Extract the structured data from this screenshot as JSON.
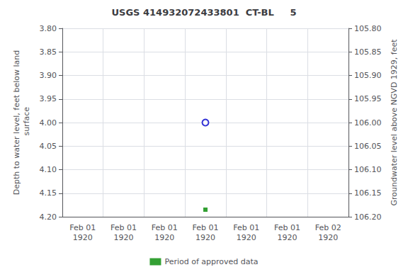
{
  "chart_data": {
    "type": "scatter",
    "title": "USGS 414932072433801  CT-BL     5",
    "categories": [
      "Feb 01\n1920",
      "Feb 01\n1920",
      "Feb 01\n1920",
      "Feb 01\n1920",
      "Feb 01\n1920",
      "Feb 01\n1920",
      "Feb 02\n1920"
    ],
    "ylabel": "Depth to water level, feet below land\n surface",
    "y2label": "Groundwater level above NGVD 1929, feet",
    "ylim": [
      4.2,
      3.8
    ],
    "yticks": [
      {
        "value": 3.8,
        "label": "3.80"
      },
      3.85,
      {
        "value": 3.9,
        "label": "3.90"
      },
      3.95,
      {
        "value": 4.0,
        "label": "4.00"
      },
      4.05,
      {
        "value": 4.1,
        "label": "4.10"
      },
      4.15,
      {
        "value": 4.2,
        "label": "4.20"
      }
    ],
    "y2lim": [
      106.2,
      105.8
    ],
    "y2ticks": [
      {
        "value": 106.2,
        "label": "106.20"
      },
      106.15,
      {
        "value": 106.1,
        "label": "106.10"
      },
      106.05,
      {
        "value": 106.0,
        "label": "106.00"
      },
      105.95,
      {
        "value": 105.9,
        "label": "105.90"
      },
      105.85,
      {
        "value": 105.8,
        "label": "105.80"
      }
    ],
    "series": [
      {
        "color": "#0000CC",
        "marker": "open_circle",
        "values": [
          null,
          null,
          null,
          4.0,
          null,
          null,
          null
        ]
      },
      {
        "name": "Period of approved data",
        "color": "#008800",
        "marker": "square",
        "values": [
          null,
          null,
          null,
          4.185,
          null,
          null,
          null
        ]
      }
    ],
    "grid": true,
    "legend": "bottom"
  }
}
